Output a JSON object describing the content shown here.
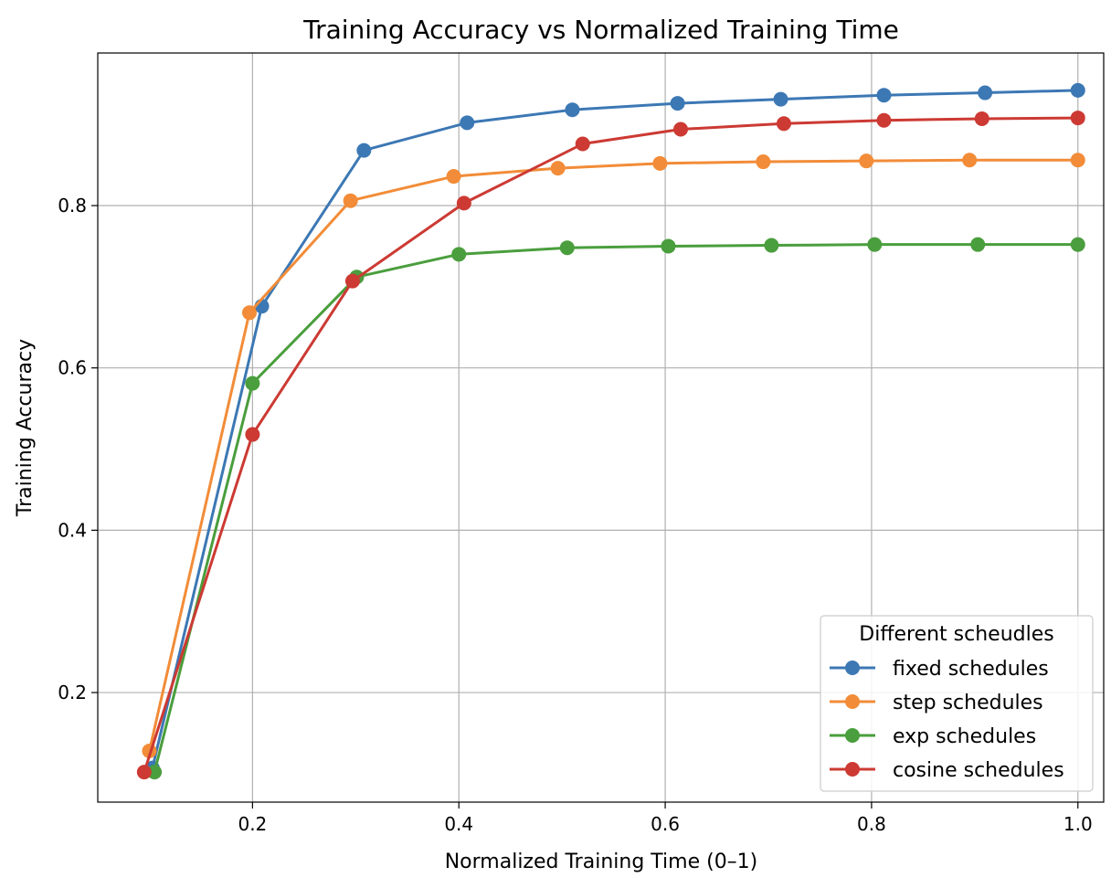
{
  "chart_data": {
    "type": "line",
    "title": "Training Accuracy vs Normalized Training Time",
    "xlabel": "Normalized Training Time (0–1)",
    "ylabel": "Training Accuracy",
    "xlim": [
      0.05,
      1.025
    ],
    "ylim": [
      0.065,
      0.988
    ],
    "xticks": [
      0.2,
      0.4,
      0.6,
      0.8,
      1.0
    ],
    "xtick_labels": [
      "0.2",
      "0.4",
      "0.6",
      "0.8",
      "1.0"
    ],
    "yticks": [
      0.2,
      0.4,
      0.6,
      0.8
    ],
    "ytick_labels": [
      "0.2",
      "0.4",
      "0.6",
      "0.8"
    ],
    "grid": true,
    "legend": {
      "title": "Different scheudles",
      "position": "lower right"
    },
    "series": [
      {
        "name": "fixed schedules",
        "color": "#3c78b4",
        "x": [
          0.103,
          0.209,
          0.308,
          0.408,
          0.51,
          0.612,
          0.712,
          0.812,
          0.91,
          1.0
        ],
        "y": [
          0.107,
          0.676,
          0.868,
          0.902,
          0.918,
          0.926,
          0.931,
          0.936,
          0.939,
          0.942
        ]
      },
      {
        "name": "step schedules",
        "color": "#f28c38",
        "x": [
          0.1,
          0.197,
          0.295,
          0.395,
          0.496,
          0.595,
          0.695,
          0.795,
          0.895,
          1.0
        ],
        "y": [
          0.128,
          0.668,
          0.806,
          0.836,
          0.846,
          0.852,
          0.854,
          0.855,
          0.856,
          0.856
        ]
      },
      {
        "name": "exp schedules",
        "color": "#4a9e3d",
        "x": [
          0.105,
          0.2,
          0.301,
          0.4,
          0.505,
          0.603,
          0.703,
          0.803,
          0.903,
          1.0
        ],
        "y": [
          0.102,
          0.581,
          0.712,
          0.74,
          0.748,
          0.75,
          0.751,
          0.752,
          0.752,
          0.752
        ]
      },
      {
        "name": "cosine schedules",
        "color": "#cc3a33",
        "x": [
          0.095,
          0.2,
          0.297,
          0.405,
          0.52,
          0.615,
          0.715,
          0.812,
          0.907,
          1.0
        ],
        "y": [
          0.102,
          0.518,
          0.707,
          0.803,
          0.876,
          0.894,
          0.901,
          0.905,
          0.907,
          0.908
        ]
      }
    ]
  }
}
